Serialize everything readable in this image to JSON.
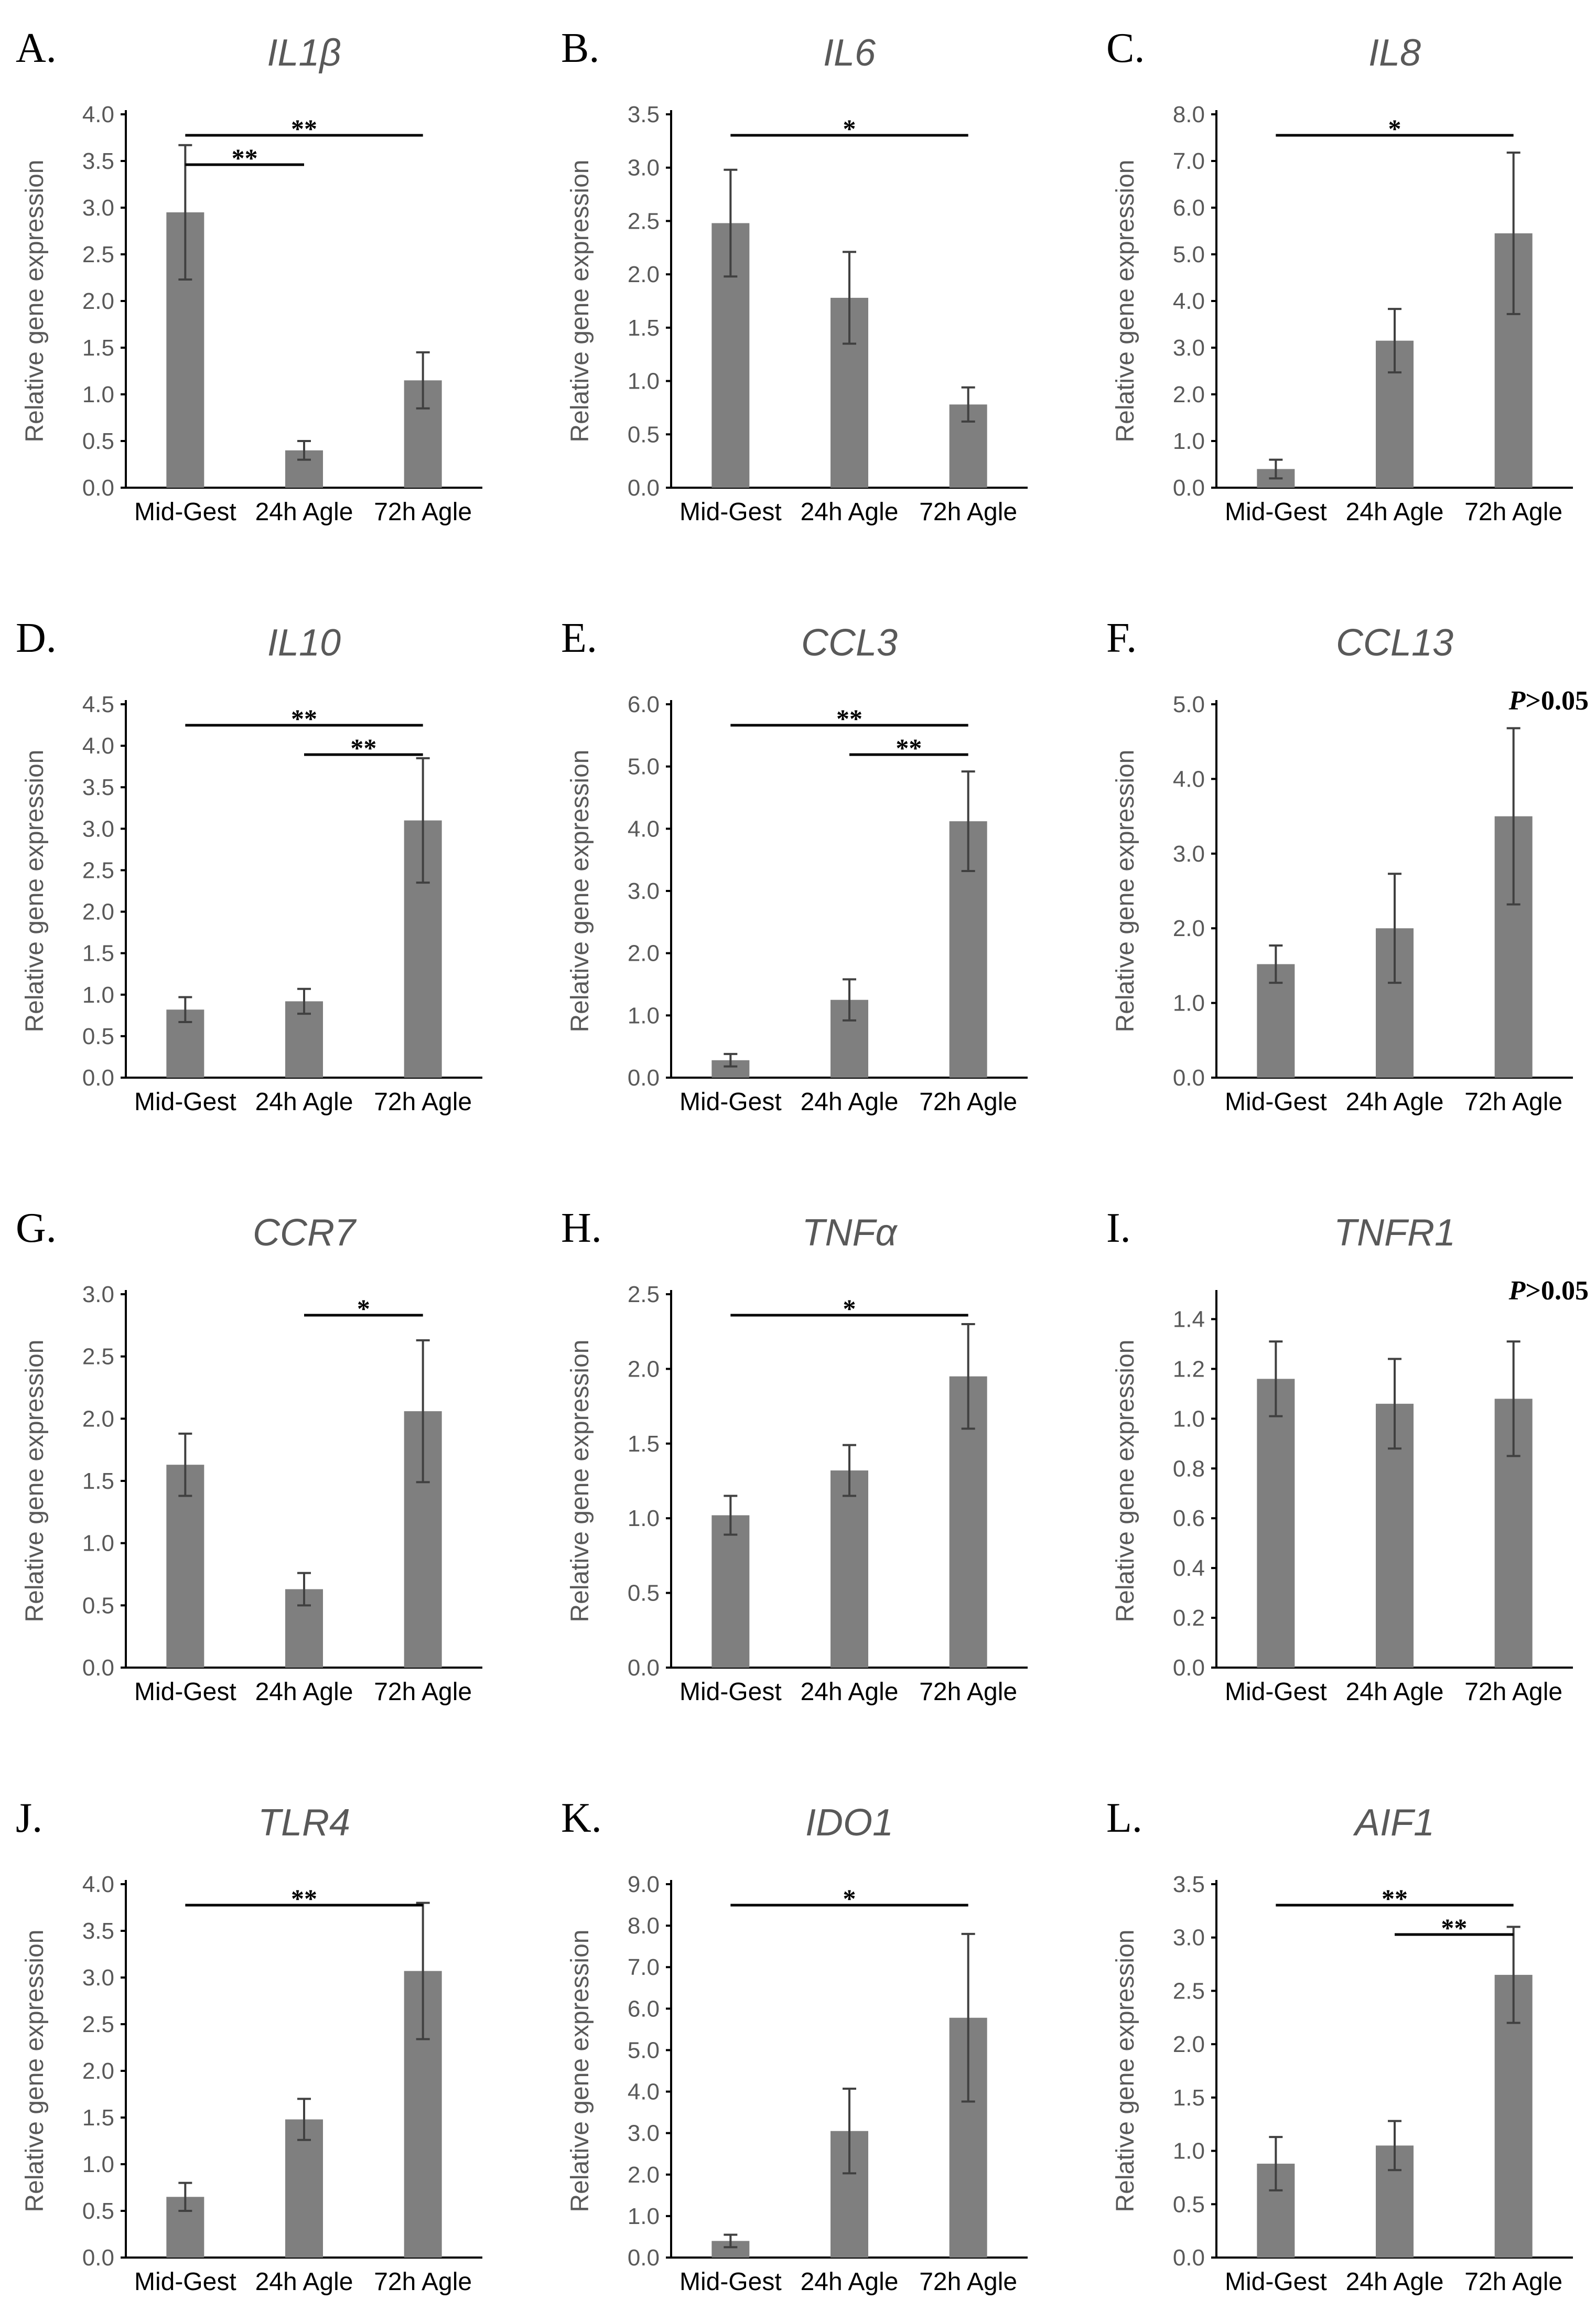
{
  "categories": [
    "Mid-Gest",
    "24h Agle",
    "72h Agle"
  ],
  "ylabel": "Relative gene expression",
  "chart_data": [
    {
      "type": "bar",
      "letter": "A.",
      "title": "IL1β",
      "ylim": [
        0,
        4.0
      ],
      "ticks": [
        "0.0",
        "0.5",
        "1.0",
        "1.5",
        "2.0",
        "2.5",
        "3.0",
        "3.5",
        "4.0"
      ],
      "values": [
        2.95,
        0.4,
        1.15
      ],
      "errors": [
        0.72,
        0.1,
        0.3
      ],
      "sig": [
        {
          "from": 0,
          "to": 2,
          "label": "**"
        },
        {
          "from": 0,
          "to": 1,
          "label": "**"
        }
      ]
    },
    {
      "type": "bar",
      "letter": "B.",
      "title": "IL6",
      "ylim": [
        0,
        3.5
      ],
      "ticks": [
        "0.0",
        "0.5",
        "1.0",
        "1.5",
        "2.0",
        "2.5",
        "3.0",
        "3.5"
      ],
      "values": [
        2.48,
        1.78,
        0.78
      ],
      "errors": [
        0.5,
        0.43,
        0.16
      ],
      "sig": [
        {
          "from": 0,
          "to": 2,
          "label": "*"
        }
      ]
    },
    {
      "type": "bar",
      "letter": "C.",
      "title": "IL8",
      "ylim": [
        0,
        8.0
      ],
      "ticks": [
        "0.0",
        "1.0",
        "2.0",
        "3.0",
        "4.0",
        "5.0",
        "6.0",
        "7.0",
        "8.0"
      ],
      "values": [
        0.4,
        3.15,
        5.45
      ],
      "errors": [
        0.2,
        0.68,
        1.73
      ],
      "sig": [
        {
          "from": 0,
          "to": 2,
          "label": "*"
        }
      ]
    },
    {
      "type": "bar",
      "letter": "D.",
      "title": "IL10",
      "ylim": [
        0,
        4.5
      ],
      "ticks": [
        "0.0",
        "0.5",
        "1.0",
        "1.5",
        "2.0",
        "2.5",
        "3.0",
        "3.5",
        "4.0",
        "4.5"
      ],
      "values": [
        0.82,
        0.92,
        3.1
      ],
      "errors": [
        0.15,
        0.15,
        0.75
      ],
      "sig": [
        {
          "from": 0,
          "to": 2,
          "label": "**"
        },
        {
          "from": 1,
          "to": 2,
          "label": "**"
        }
      ]
    },
    {
      "type": "bar",
      "letter": "E.",
      "title": "CCL3",
      "ylim": [
        0,
        6.0
      ],
      "ticks": [
        "0.0",
        "1.0",
        "2.0",
        "3.0",
        "4.0",
        "5.0",
        "6.0"
      ],
      "values": [
        0.28,
        1.25,
        4.12
      ],
      "errors": [
        0.1,
        0.33,
        0.8
      ],
      "sig": [
        {
          "from": 0,
          "to": 2,
          "label": "**"
        },
        {
          "from": 1,
          "to": 2,
          "label": "**"
        }
      ]
    },
    {
      "type": "bar",
      "letter": "F.",
      "title": "CCL13",
      "ylim": [
        0,
        5.0
      ],
      "ticks": [
        "0.0",
        "1.0",
        "2.0",
        "3.0",
        "4.0",
        "5.0"
      ],
      "values": [
        1.52,
        2.0,
        3.5
      ],
      "errors": [
        0.25,
        0.73,
        1.18
      ],
      "sig": [],
      "note_p": "P",
      "note_rest": ">0.05"
    },
    {
      "type": "bar",
      "letter": "G.",
      "title": "CCR7",
      "ylim": [
        0,
        3.0
      ],
      "ticks": [
        "0.0",
        "0.5",
        "1.0",
        "1.5",
        "2.0",
        "2.5",
        "3.0"
      ],
      "values": [
        1.63,
        0.63,
        2.06
      ],
      "errors": [
        0.25,
        0.13,
        0.57
      ],
      "sig": [
        {
          "from": 1,
          "to": 2,
          "label": "*"
        }
      ]
    },
    {
      "type": "bar",
      "letter": "H.",
      "title": "TNFα",
      "ylim": [
        0,
        2.5
      ],
      "ticks": [
        "0.0",
        "0.5",
        "1.0",
        "1.5",
        "2.0",
        "2.5"
      ],
      "values": [
        1.02,
        1.32,
        1.95
      ],
      "errors": [
        0.13,
        0.17,
        0.35
      ],
      "sig": [
        {
          "from": 0,
          "to": 2,
          "label": "*"
        }
      ]
    },
    {
      "type": "bar",
      "letter": "I.",
      "title": "TNFR1",
      "ylim": [
        0,
        1.5
      ],
      "ticks": [
        "0.0",
        "0.2",
        "0.4",
        "0.6",
        "0.8",
        "1.0",
        "1.2",
        "1.4"
      ],
      "values": [
        1.16,
        1.06,
        1.08
      ],
      "errors": [
        0.15,
        0.18,
        0.23
      ],
      "sig": [],
      "note_p": "P",
      "note_rest": ">0.05"
    },
    {
      "type": "bar",
      "letter": "J.",
      "title": "TLR4",
      "ylim": [
        0,
        4.0
      ],
      "ticks": [
        "0.0",
        "0.5",
        "1.0",
        "1.5",
        "2.0",
        "2.5",
        "3.0",
        "3.5",
        "4.0"
      ],
      "values": [
        0.65,
        1.48,
        3.07
      ],
      "errors": [
        0.15,
        0.22,
        0.73
      ],
      "sig": [
        {
          "from": 0,
          "to": 2,
          "label": "**"
        }
      ]
    },
    {
      "type": "bar",
      "letter": "K.",
      "title": "IDO1",
      "ylim": [
        0,
        9.0
      ],
      "ticks": [
        "0.0",
        "1.0",
        "2.0",
        "3.0",
        "4.0",
        "5.0",
        "6.0",
        "7.0",
        "8.0",
        "9.0"
      ],
      "values": [
        0.4,
        3.05,
        5.78
      ],
      "errors": [
        0.15,
        1.02,
        2.02
      ],
      "sig": [
        {
          "from": 0,
          "to": 2,
          "label": "*"
        }
      ]
    },
    {
      "type": "bar",
      "letter": "L.",
      "title": "AIF1",
      "ylim": [
        0,
        3.5
      ],
      "ticks": [
        "0.0",
        "0.5",
        "1.0",
        "1.5",
        "2.0",
        "2.5",
        "3.0",
        "3.5"
      ],
      "values": [
        0.88,
        1.05,
        2.65
      ],
      "errors": [
        0.25,
        0.23,
        0.45
      ],
      "sig": [
        {
          "from": 0,
          "to": 2,
          "label": "**"
        },
        {
          "from": 1,
          "to": 2,
          "label": "**"
        }
      ]
    }
  ]
}
